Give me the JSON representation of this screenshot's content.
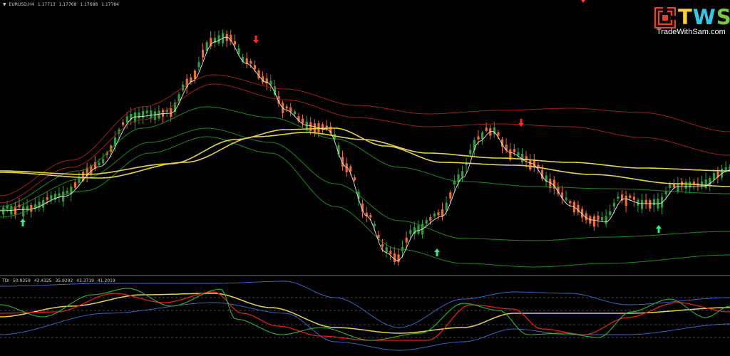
{
  "window": {
    "symbol": "EURUSD,H4",
    "quote": [
      "1.17713",
      "1.17768",
      "1.17688",
      "1.17784"
    ],
    "header_arrow": "▼"
  },
  "indicator": {
    "name": "TDI",
    "values": [
      "50.9359",
      "43.4325",
      "35.9292",
      "43.3719",
      "41.2019"
    ]
  },
  "logo": {
    "letters": [
      "T",
      "W",
      "S"
    ],
    "website": "TradeWithSam.com",
    "colors": {
      "t": "#f7d33b",
      "w": "#33c6e8",
      "s": "#7ac943",
      "mark": "#e2432e"
    }
  },
  "colors": {
    "background": "#000000",
    "bull_candle": "#2e9e3a",
    "bear_candle": "#f26b2e",
    "signal_buy": "#2cf08c",
    "signal_sell": "#ff2a2a",
    "ma_yellow": "#e6d34a",
    "band_red": "#9e1f1f",
    "band_green": "#1e8a1e",
    "price_line": "#ffffff"
  },
  "signals": [
    {
      "type": "sell",
      "icon": "down-arrow-icon",
      "bar": 43
    },
    {
      "type": "buy",
      "icon": "up-arrow-icon",
      "bar": 3
    },
    {
      "type": "buy",
      "icon": "up-arrow-icon",
      "bar": 76
    },
    {
      "type": "sell",
      "icon": "down-arrow-icon",
      "bar": 91
    },
    {
      "type": "buy",
      "icon": "up-arrow-icon",
      "bar": 115
    }
  ]
}
